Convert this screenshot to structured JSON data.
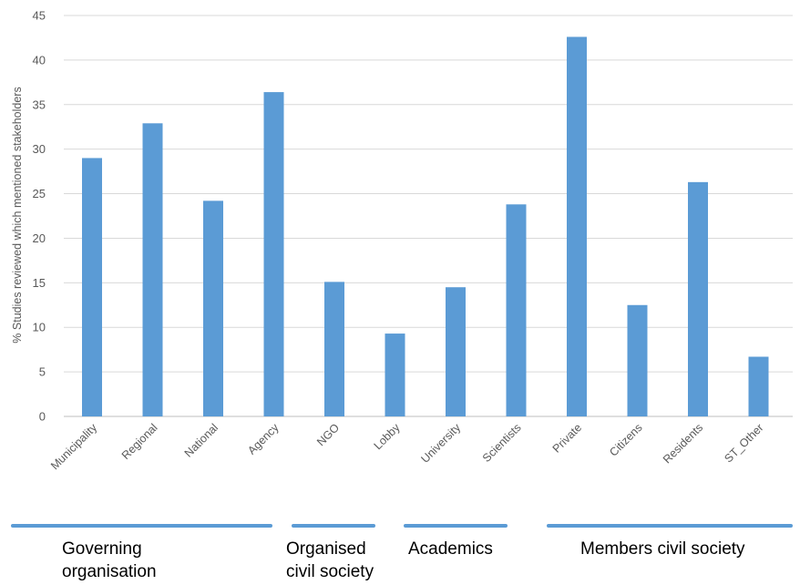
{
  "chart_data": {
    "type": "bar",
    "ylabel": "% Studies reviewed which mentioned stakeholders",
    "xlabel": "",
    "ylim": [
      0,
      45
    ],
    "yticks": [
      0,
      5,
      10,
      15,
      20,
      25,
      30,
      35,
      40,
      45
    ],
    "grid": true,
    "bar_color": "#5b9bd5",
    "categories": [
      "Municipality",
      "Regional",
      "National",
      "Agency",
      "NGO",
      "Lobby",
      "University",
      "Scientists",
      "Private",
      "Citizens",
      "Residents",
      "ST_Other"
    ],
    "values": [
      29.0,
      32.9,
      24.2,
      36.4,
      15.1,
      9.3,
      14.5,
      23.8,
      42.6,
      12.5,
      26.3,
      6.7
    ],
    "groups": [
      {
        "label": "Governing\norganisation",
        "start": 0,
        "end": 3
      },
      {
        "label": "Organised\ncivil society",
        "start": 4,
        "end": 5
      },
      {
        "label": "Academics",
        "start": 6,
        "end": 7
      },
      {
        "label": "Members  civil society",
        "start": 8,
        "end": 11
      }
    ]
  }
}
